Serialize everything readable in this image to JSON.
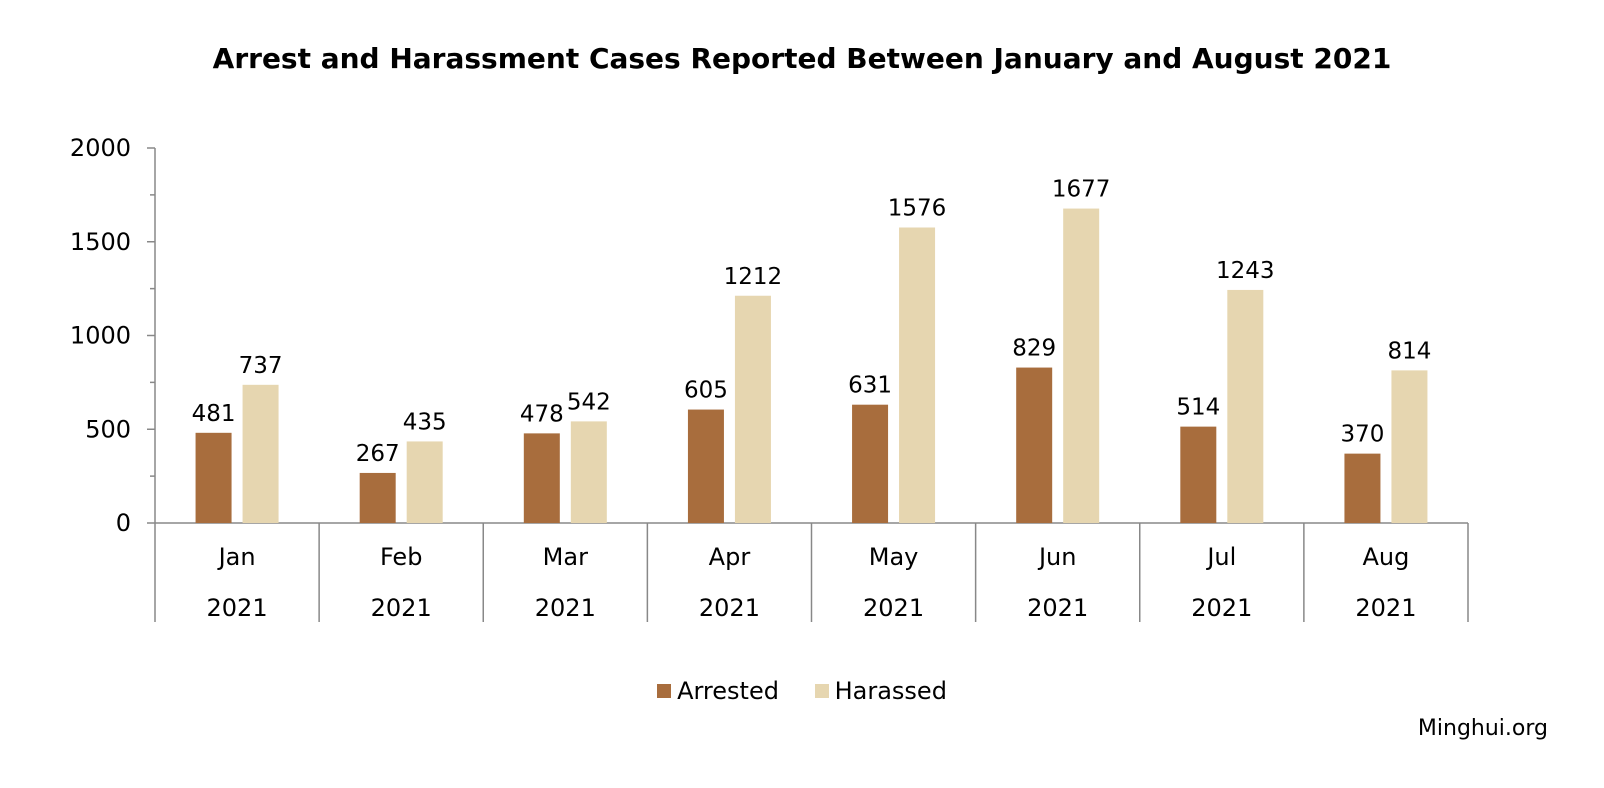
{
  "chart_data": {
    "type": "bar",
    "title": "Arrest and Harassment Cases Reported Between January and August 2021",
    "categories": [
      "Jan",
      "Feb",
      "Mar",
      "Apr",
      "May",
      "Jun",
      "Jul",
      "Aug"
    ],
    "category_years": [
      "2021",
      "2021",
      "2021",
      "2021",
      "2021",
      "2021",
      "2021",
      "2021"
    ],
    "series": [
      {
        "name": "Arrested",
        "color": "#a86d3d",
        "values": [
          481,
          267,
          478,
          605,
          631,
          829,
          514,
          370
        ]
      },
      {
        "name": "Harassed",
        "color": "#e6d6b0",
        "values": [
          737,
          435,
          542,
          1212,
          1576,
          1677,
          1243,
          814
        ]
      }
    ],
    "ylim": [
      0,
      2000
    ],
    "yticks": [
      0,
      500,
      1000,
      1500,
      2000
    ],
    "ylabel": "",
    "xlabel": "",
    "grid": false,
    "legend_position": "bottom",
    "data_labels": true
  },
  "source_label": "Minghui.org"
}
